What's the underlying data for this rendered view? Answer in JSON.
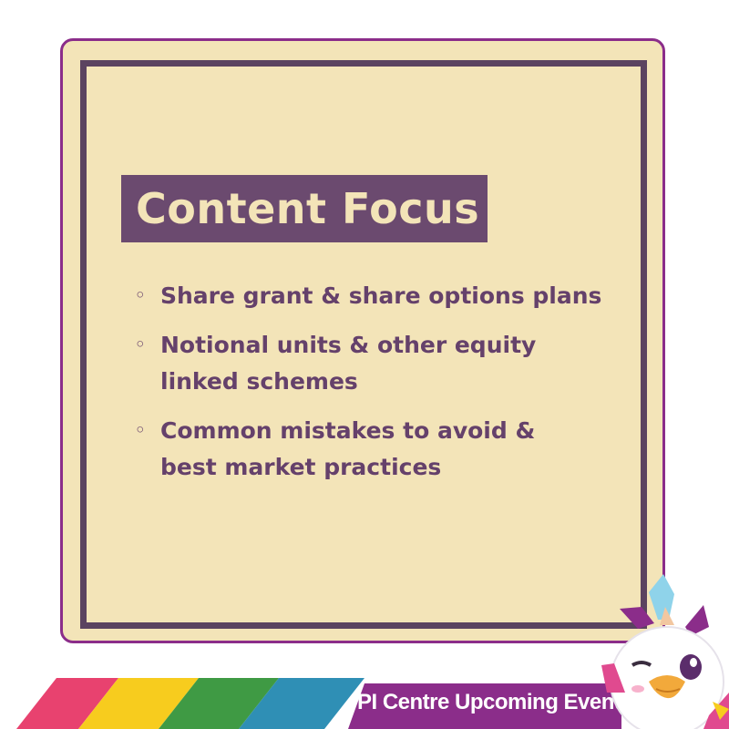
{
  "card": {
    "title": "Content Focus",
    "bullet_marker": "◦",
    "bullets": [
      " Share grant & share options plans",
      " Notional units & other equity\nlinked schemes",
      "Common mistakes to avoid &\nbest market practices"
    ]
  },
  "footer": {
    "banner_text": "PI Centre Upcoming Event"
  },
  "colors": {
    "card_background": "#f3e4b8",
    "card_border": "#8b2d8a",
    "frame": "#5b4360",
    "title_box": "#6b4a6f",
    "text": "#65416b",
    "stripe": [
      "#e8426f",
      "#f7cc1e",
      "#3f9a44",
      "#2f8fb5"
    ],
    "banner": "#8b2d8a"
  },
  "icons": {
    "mascot": "bird-mascot-icon"
  }
}
